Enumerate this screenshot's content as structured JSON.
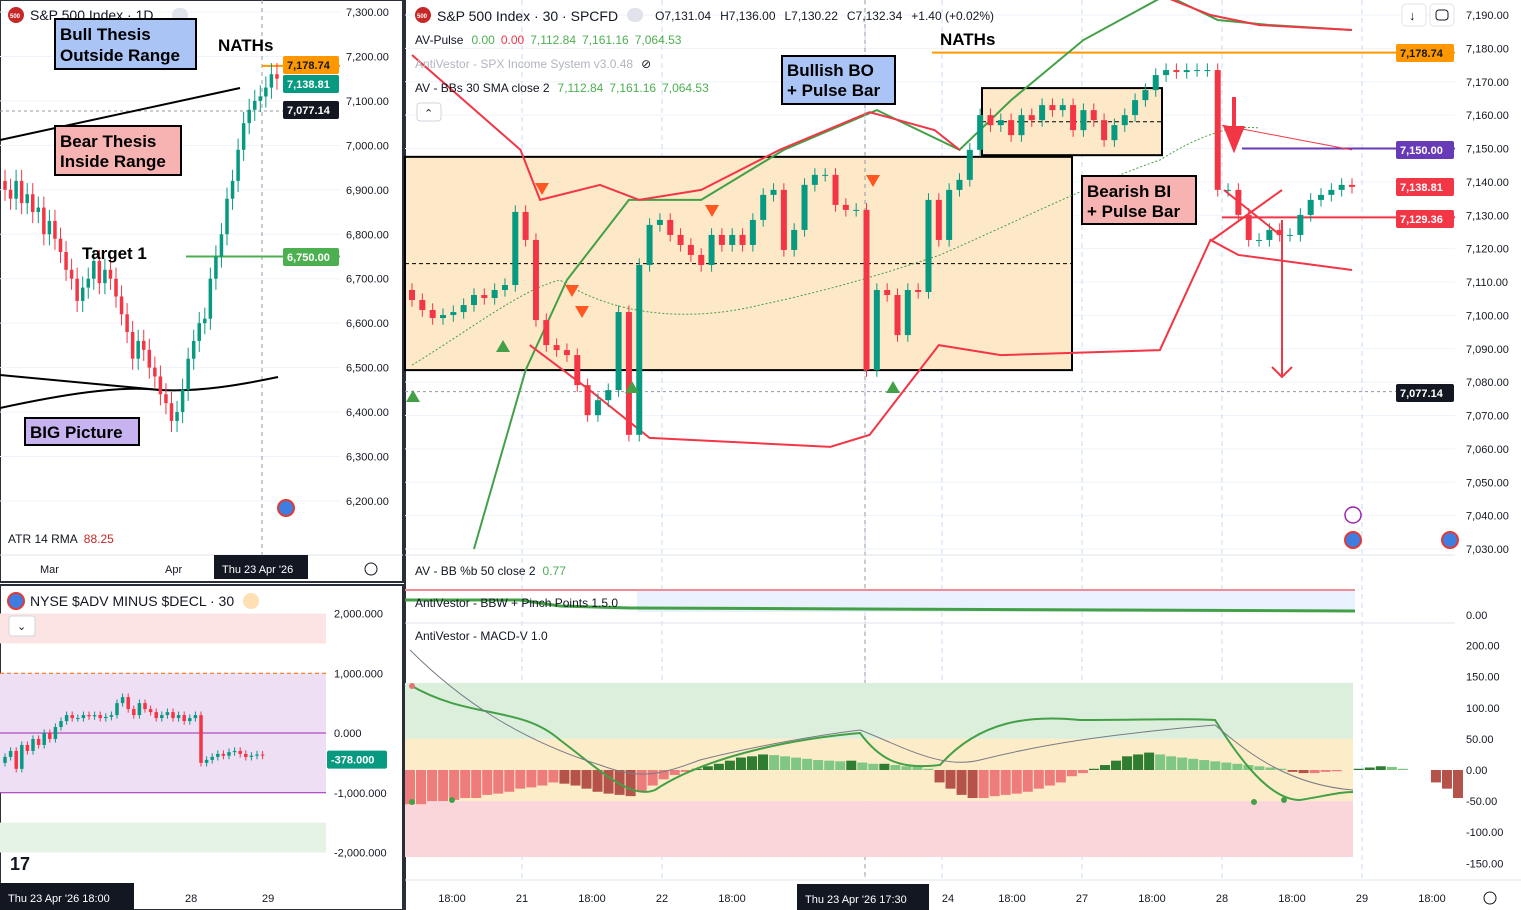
{
  "left_chart": {
    "title": "S&P 500 Index · 1D",
    "annotations": {
      "bull": [
        "Bull Thesis",
        "Outside Range"
      ],
      "bear": [
        "Bear Thesis",
        "Inside Range"
      ],
      "target": "Target 1",
      "big": "BIG Picture",
      "naths": "NATHs"
    },
    "indicator": {
      "name": "ATR 14 RMA",
      "value": "88.25"
    },
    "price_axis": [
      "7,300.00",
      "7,200.00",
      "7,100.00",
      "7,000.00",
      "6,900.00",
      "6,800.00",
      "6,700.00",
      "6,600.00",
      "6,500.00",
      "6,400.00",
      "6,300.00",
      "6,200.00"
    ],
    "price_tags": [
      {
        "label": "7,178.74",
        "color": "#ff9800",
        "text": "#131722"
      },
      {
        "label": "7,138.81",
        "color": "#089981",
        "text": "#ffffff"
      },
      {
        "label": "7,077.14",
        "color": "#131722",
        "text": "#ffffff"
      },
      {
        "label": "6,750.00",
        "color": "#4caf50",
        "text": "#ffffff"
      }
    ],
    "time_axis": [
      "Mar",
      "Apr"
    ],
    "time_cursor": "Thu 23 Apr '26"
  },
  "adv_chart": {
    "title": "NYSE $ADV MINUS $DECL · 30",
    "price_axis": [
      "2,000.000",
      "1,000.000",
      "0.000",
      "-1,000.000",
      "-2,000.000"
    ],
    "price_tag": "-378.000",
    "time_cursor": "Thu 23 Apr '26   18:00",
    "time_axis": [
      "28",
      "29"
    ]
  },
  "main_chart": {
    "title": "S&P 500 Index · 30 · SPCFD",
    "ohlc": {
      "o": "O7,131.04",
      "h": "H7,136.00",
      "l": "L7,130.22",
      "c": "C7,132.34",
      "chg": "+1.40 (+0.02%)"
    },
    "indicators": [
      {
        "name": "AV-Pulse",
        "values": [
          {
            "v": "0.00",
            "c": "#4caf50"
          },
          {
            "v": "0.00",
            "c": "#f23645"
          },
          {
            "v": "7,112.84",
            "c": "#4caf50"
          },
          {
            "v": "7,161.16",
            "c": "#4caf50"
          },
          {
            "v": "7,064.53",
            "c": "#4caf50"
          }
        ]
      },
      {
        "name": "AntiVestor - SPX Income System v3.0.48",
        "hidden": true
      },
      {
        "name": "AV - BBs 30 SMA close 2",
        "values": [
          {
            "v": "7,112.84",
            "c": "#4caf50"
          },
          {
            "v": "7,161.16",
            "c": "#4caf50"
          },
          {
            "v": "7,064.53",
            "c": "#4caf50"
          }
        ]
      }
    ],
    "annotations": {
      "naths": "NATHs",
      "bull_bo": [
        "Bullish BO",
        "+ Pulse Bar"
      ],
      "bear_bi": [
        "Bearish BI",
        "+ Pulse Bar"
      ]
    },
    "price_axis": [
      "7,190.00",
      "7,180.00",
      "7,170.00",
      "7,160.00",
      "7,150.00",
      "7,140.00",
      "7,130.00",
      "7,120.00",
      "7,110.00",
      "7,100.00",
      "7,090.00",
      "7,080.00",
      "7,070.00",
      "7,060.00",
      "7,050.00",
      "7,040.00",
      "7,030.00"
    ],
    "price_tags": [
      {
        "label": "7,178.74",
        "color": "#ff9800",
        "text": "#131722"
      },
      {
        "label": "7,150.00",
        "color": "#673ab7",
        "text": "#ffffff"
      },
      {
        "label": "7,138.81",
        "color": "#f23645",
        "text": "#ffffff"
      },
      {
        "label": "7,129.36",
        "color": "#f23645",
        "text": "#ffffff"
      },
      {
        "label": "7,077.14",
        "color": "#131722",
        "text": "#ffffff"
      }
    ],
    "time_axis": [
      "18:00",
      "21",
      "18:00",
      "22",
      "18:00",
      "24",
      "18:00",
      "27",
      "18:00",
      "28",
      "18:00",
      "29",
      "18:00"
    ],
    "time_cursor": "Thu 23 Apr '26   17:30",
    "pb_panel": {
      "name": "AV - BB %b 50 close 2",
      "value": "0.77",
      "axis": "0.00"
    },
    "bbw_panel": {
      "name": "AntiVestor - BBW + Pinch Points 1.5.0"
    },
    "macd_panel": {
      "name": "AntiVestor - MACD-V 1.0",
      "axis": [
        "200.00",
        "150.00",
        "100.00",
        "50.00",
        "0.00",
        "-50.00",
        "-100.00",
        "-150.00"
      ]
    }
  },
  "colors": {
    "up": "#089981",
    "down": "#f23645",
    "range_box": "#fde8c8",
    "naths": "#ff9800",
    "target": "#4caf50",
    "purple": "#673ab7"
  },
  "chart_data": [
    {
      "type": "candlestick",
      "title": "S&P 500 Index · 1D",
      "ylim": [
        6200,
        7300
      ],
      "closes": [
        6900,
        6880,
        6920,
        6870,
        6890,
        6850,
        6860,
        6800,
        6830,
        6790,
        6760,
        6720,
        6700,
        6650,
        6680,
        6700,
        6740,
        6690,
        6720,
        6700,
        6660,
        6620,
        6580,
        6520,
        6560,
        6540,
        6500,
        6480,
        6440,
        6420,
        6380,
        6400,
        6450,
        6520,
        6560,
        6600,
        6610,
        6700,
        6750,
        6800,
        6880,
        6920,
        6990,
        7050,
        7080,
        7100,
        7110,
        7130,
        7160,
        7150
      ],
      "levels": {
        "naths": 7178.74,
        "target": 6750,
        "last": 7077.14
      }
    },
    {
      "type": "candlestick",
      "title": "S&P 500 Index · 30 · SPCFD",
      "ylim": [
        7030,
        7190
      ],
      "closes": [
        7104.6,
        7101.6,
        7099.2,
        7100.1,
        7101.0,
        7103.1,
        7106.1,
        7105.2,
        7107.6,
        7109.1,
        7131.0,
        7122.6,
        7098.6,
        7091.1,
        7089.6,
        7088.1,
        7079.1,
        7070.1,
        7074.6,
        7077.6,
        7101,
        7064.2,
        7115.1,
        7127.1,
        7128.6,
        7124.1,
        7121.1,
        7118.1,
        7115.1,
        7124.1,
        7121.1,
        7124.1,
        7121.1,
        7128.6,
        7136.1,
        7137.6,
        7119.6,
        7125.6,
        7139.1,
        7142.1,
        7142.1,
        7133.1,
        7131.6,
        7131.6,
        7083.6,
        7107.6,
        7106.1,
        7094.1,
        7107.6,
        7107,
        7134.6,
        7122.6,
        7137.6,
        7140.6,
        7149.6,
        7160.0,
        7157.0,
        7158.5,
        7154.0,
        7160.0,
        7158.5,
        7163.0,
        7161.5,
        7163.0,
        7155.5,
        7161.5,
        7158.5,
        7152.5,
        7157.0,
        7160.0,
        7164.5,
        7167.5,
        7172.0,
        7173.5,
        7172.9,
        7173.5,
        7173.5,
        7173.5,
        7137.6,
        7137.6,
        7130.1,
        7122.6,
        7122.6,
        7125.6,
        7124.1,
        7124.1,
        7130.1,
        7134.6,
        7136.1,
        7137.6,
        7139.1,
        7138.5
      ],
      "levels": {
        "naths": 7178.74,
        "purple": 7150.0,
        "red": 7129.36,
        "last": 7077.14
      },
      "ranges": [
        {
          "from_bar": 0,
          "to_bar": 64,
          "top": 7147.5,
          "bottom": 7083.6,
          "mid": 7115.5
        },
        {
          "from_bar": 55,
          "to_bar": 73,
          "top": 7168.1,
          "bottom": 7148.0,
          "mid": 7158
        }
      ],
      "bands": {
        "upper": [
          [
            6,
            7030
          ],
          [
            11,
            7083.6
          ],
          [
            15,
            7110.6
          ],
          [
            21,
            7134.6
          ],
          [
            28,
            7134.6
          ],
          [
            36,
            7149.6
          ],
          [
            45,
            7161.5
          ],
          [
            53,
            7149.6
          ],
          [
            58,
            7164.5
          ],
          [
            65,
            7182.5
          ],
          [
            73,
            7196
          ],
          [
            78,
            7188.5
          ],
          [
            83,
            7187
          ],
          [
            91,
            7185.5
          ]
        ],
        "upper_red": [
          [
            0,
            7178
          ],
          [
            10.5,
            7149.6
          ],
          [
            12.4,
            7134.6
          ],
          [
            18.2,
            7139.1
          ],
          [
            22,
            7134.6
          ],
          [
            28,
            7137.6
          ],
          [
            35.6,
            7149.6
          ],
          [
            44.3,
            7160.9
          ],
          [
            50.6,
            7155.5
          ],
          [
            53,
            7149.6
          ]
        ],
        "upper_red_late": [
          [
            72.4,
            7196
          ],
          [
            77.3,
            7190
          ],
          [
            82,
            7187
          ],
          [
            91,
            7185.5
          ]
        ],
        "lower": [
          [
            11.4,
            7091.1
          ],
          [
            17.2,
            7077.6
          ],
          [
            23,
            7063.3
          ],
          [
            40.5,
            7060.6
          ],
          [
            44.3,
            7064.2
          ],
          [
            51,
            7091.1
          ],
          [
            57,
            7088.1
          ],
          [
            72.4,
            7089.6
          ],
          [
            77.3,
            7122.6
          ],
          [
            80,
            7118.1
          ],
          [
            91,
            7113.6
          ]
        ],
        "mid_late": [
          [
            78.4,
            7157
          ],
          [
            91,
            7149.6
          ]
        ]
      }
    },
    {
      "type": "candlestick",
      "title": "NYSE $ADV MINUS $DECL · 30",
      "ylim": [
        -2000,
        2000
      ],
      "closes": [
        -400,
        -300,
        -600,
        -200,
        -300,
        -100,
        -200,
        0,
        -100,
        100,
        200,
        300,
        250,
        250,
        300,
        280,
        300,
        250,
        270,
        300,
        500,
        600,
        400,
        300,
        500,
        400,
        350,
        250,
        300,
        350,
        250,
        300,
        200,
        250,
        300,
        -500,
        -450,
        -400,
        -350,
        -380,
        -320,
        -300,
        -350,
        -400,
        -380,
        -360,
        -378
      ]
    },
    {
      "type": "bar",
      "title": "AntiVestor - MACD-V 1.0",
      "ylim": [
        -150,
        200
      ],
      "values": [
        -55,
        -55,
        -50,
        -50,
        -48,
        -45,
        -45,
        -40,
        -38,
        -35,
        -30,
        -28,
        -25,
        -20,
        -22,
        -25,
        -30,
        -35,
        -38,
        -40,
        -42,
        -35,
        -25,
        -15,
        -8,
        -3,
        2,
        6,
        10,
        15,
        20,
        22,
        25,
        24,
        22,
        20,
        18,
        16,
        15,
        14,
        15,
        12,
        10,
        10,
        8,
        6,
        5,
        2,
        -20,
        -30,
        -40,
        -45,
        -45,
        -42,
        -40,
        -38,
        -35,
        -30,
        -25,
        -20,
        -10,
        -5,
        2,
        8,
        15,
        22,
        25,
        28,
        25,
        22,
        20,
        18,
        16,
        14,
        12,
        10,
        8,
        6,
        4,
        2,
        -3,
        -5,
        -5,
        -3,
        -2,
        0,
        2,
        4,
        6,
        5,
        2,
        0,
        0,
        -20,
        -30,
        -45
      ]
    }
  ]
}
